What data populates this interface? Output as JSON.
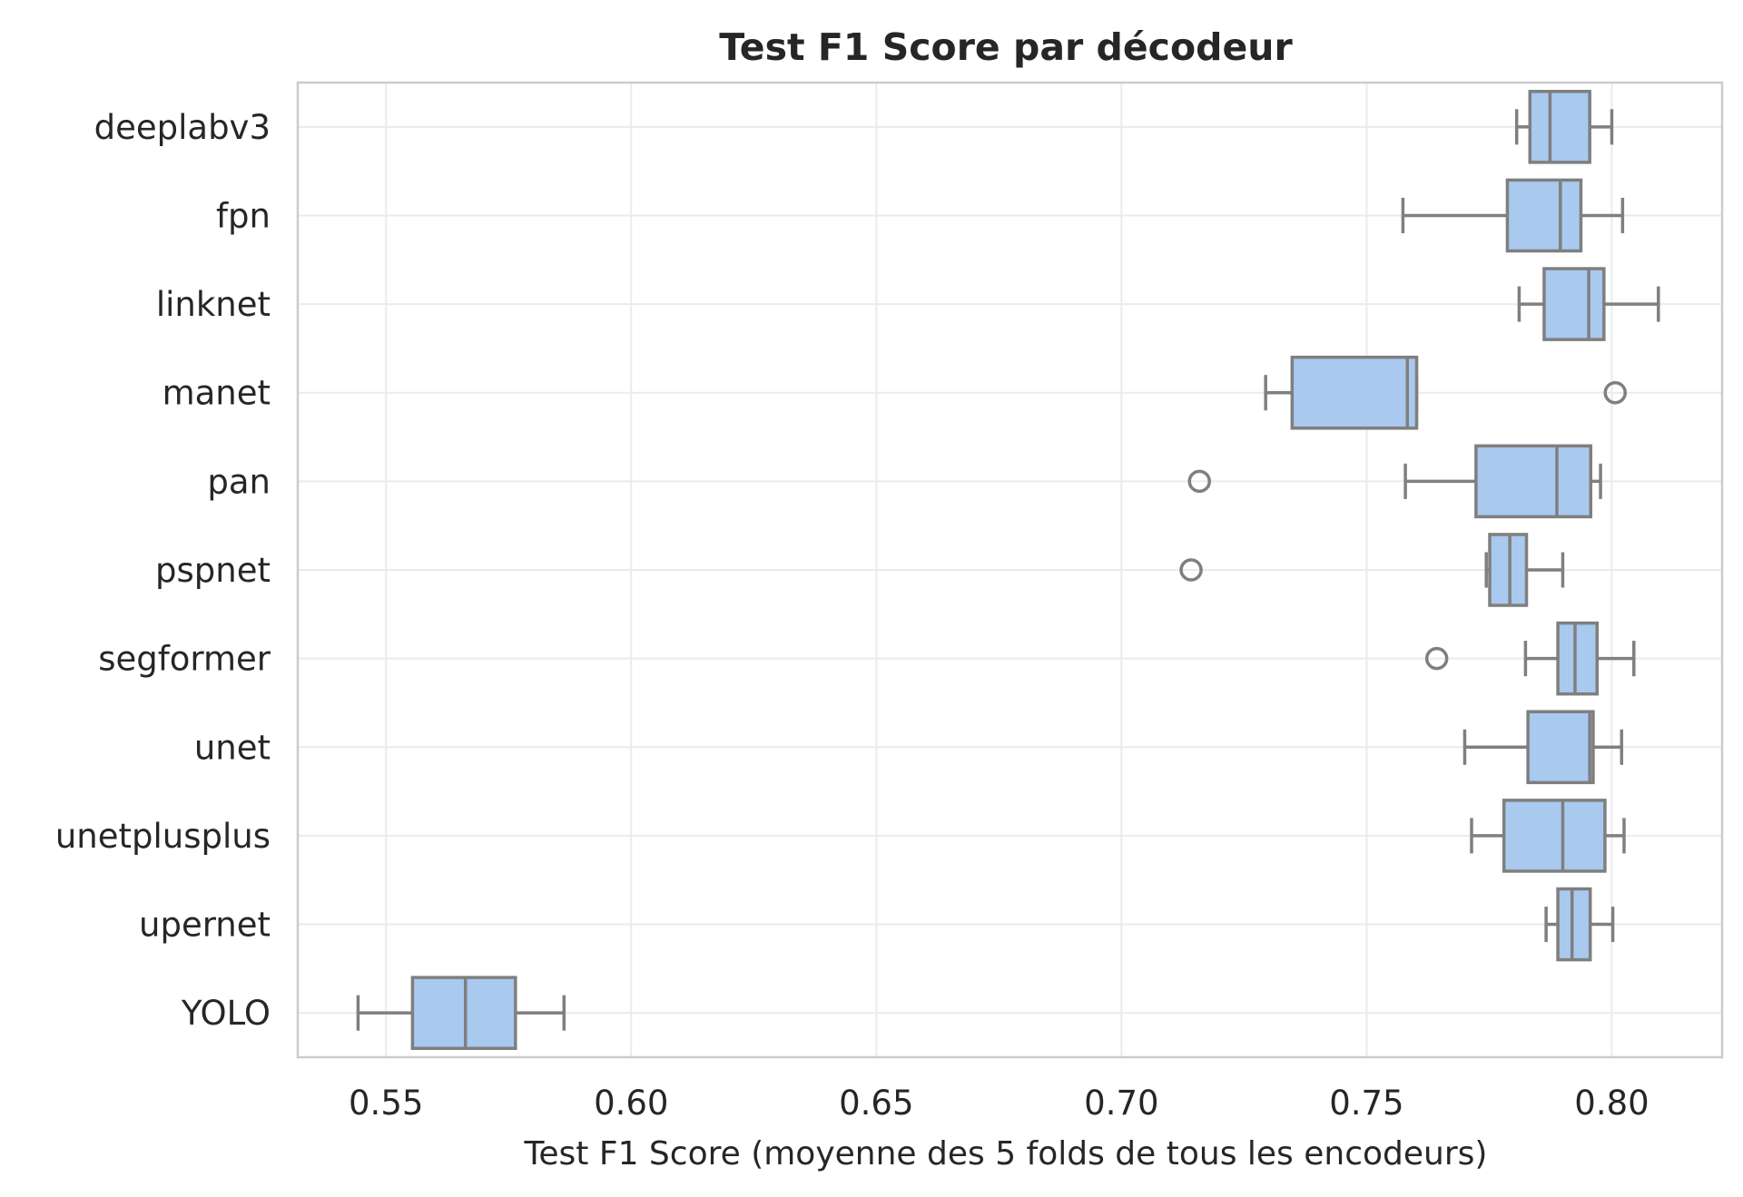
{
  "chart_data": {
    "type": "box",
    "orientation": "horizontal",
    "title": "Test F1 Score par décodeur",
    "xlabel": "Test F1 Score (moyenne des 5 folds de tous les encodeurs)",
    "ylabel": "",
    "xlim": [
      0.532,
      0.8225
    ],
    "xticks": [
      0.55,
      0.6,
      0.65,
      0.7,
      0.75,
      0.8
    ],
    "xtick_labels": [
      "0.55",
      "0.60",
      "0.65",
      "0.70",
      "0.75",
      "0.80"
    ],
    "grid": true,
    "legend": false,
    "colors": {
      "box_fill": "#a9c9ee",
      "box_edge": "#7f7f7f",
      "grid": "#ebebeb",
      "spine": "#cccccc",
      "text": "#262626"
    },
    "categories": [
      "deeplabv3",
      "fpn",
      "linknet",
      "manet",
      "pan",
      "pspnet",
      "segformer",
      "unet",
      "unetplusplus",
      "upernet",
      "YOLO"
    ],
    "boxes": [
      {
        "label": "deeplabv3",
        "whislo": 0.7806,
        "q1": 0.7833,
        "med": 0.7874,
        "q3": 0.7955,
        "whishi": 0.8,
        "fliers": []
      },
      {
        "label": "fpn",
        "whislo": 0.7574,
        "q1": 0.7787,
        "med": 0.7895,
        "q3": 0.7937,
        "whishi": 0.8022,
        "fliers": []
      },
      {
        "label": "linknet",
        "whislo": 0.7811,
        "q1": 0.7862,
        "med": 0.7953,
        "q3": 0.7984,
        "whishi": 0.8095,
        "fliers": []
      },
      {
        "label": "manet",
        "whislo": 0.7294,
        "q1": 0.7348,
        "med": 0.7583,
        "q3": 0.7602,
        "whishi": 0.7602,
        "fliers": [
          0.8007
        ]
      },
      {
        "label": "pan",
        "whislo": 0.7579,
        "q1": 0.7723,
        "med": 0.7888,
        "q3": 0.7957,
        "whishi": 0.7977,
        "fliers": [
          0.7159
        ]
      },
      {
        "label": "pspnet",
        "whislo": 0.7744,
        "q1": 0.7751,
        "med": 0.7792,
        "q3": 0.7826,
        "whishi": 0.79,
        "fliers": [
          0.7142
        ]
      },
      {
        "label": "segformer",
        "whislo": 0.7824,
        "q1": 0.789,
        "med": 0.7925,
        "q3": 0.797,
        "whishi": 0.8045,
        "fliers": [
          0.7643
        ]
      },
      {
        "label": "unet",
        "whislo": 0.77,
        "q1": 0.7829,
        "med": 0.7955,
        "q3": 0.7962,
        "whishi": 0.802,
        "fliers": []
      },
      {
        "label": "unetplusplus",
        "whislo": 0.7714,
        "q1": 0.778,
        "med": 0.79,
        "q3": 0.7986,
        "whishi": 0.8025,
        "fliers": []
      },
      {
        "label": "upernet",
        "whislo": 0.7866,
        "q1": 0.789,
        "med": 0.7919,
        "q3": 0.7956,
        "whishi": 0.8002,
        "fliers": []
      },
      {
        "label": "YOLO",
        "whislo": 0.5443,
        "q1": 0.5554,
        "med": 0.5662,
        "q3": 0.5764,
        "whishi": 0.5863,
        "fliers": []
      }
    ]
  }
}
